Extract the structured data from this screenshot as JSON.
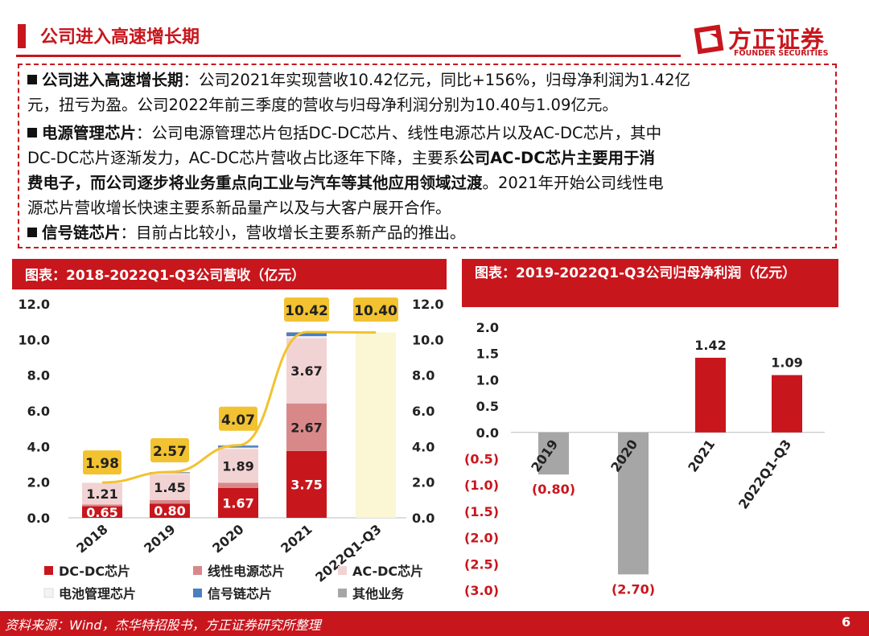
{
  "header": {
    "title": "公司进入高速增长期"
  },
  "logo": {
    "cn": "方正证券",
    "en": "FOUNDER SECURITIES"
  },
  "summary": [
    {
      "bold": "公司进入高速增长期",
      "lines": [
        "：公司2021年实现营收10.42亿元，同比+156%，归母净利润为1.42亿",
        "元，扭亏为盈。公司2022年前三季度的营收与归母净利润分别为10.40与1.09亿元。"
      ]
    },
    {
      "bold": "电源管理芯片",
      "text_line1": "：公司电源管理芯片包括DC-DC芯片、线性电源芯片以及AC-DC芯片，其中",
      "text_line2a": "DC-DC芯片逐渐发力，AC-DC芯片营收占比逐年下降，主要系",
      "text_line2b": "公司AC-DC芯片主要用于消",
      "text_line3a": "费电子，而公司逐步将业务重点向工业与汽车等其他应用领域过渡",
      "text_line3b": "。2021年开始公司线性电",
      "text_line4": "源芯片营收增长快速主要系新品量产以及与大客户展开合作。"
    },
    {
      "bold": "信号链芯片",
      "text": "：目前占比较小，营收增长主要系新产品的推出。"
    }
  ],
  "chart_data": [
    {
      "type": "bar",
      "title": "图表：2018-2022Q1-Q3公司营收（亿元）",
      "categories": [
        "2018",
        "2019",
        "2020",
        "2021",
        "2022Q1-Q3"
      ],
      "series": [
        {
          "name": "DC-DC芯片",
          "color": "#c8161d",
          "values": [
            0.65,
            0.8,
            1.67,
            3.75,
            null
          ],
          "labels": [
            "0.65",
            "0.80",
            "1.67",
            "3.75",
            ""
          ]
        },
        {
          "name": "线性电源芯片",
          "color": "#d9888a",
          "values": [
            0.1,
            0.2,
            0.3,
            2.67,
            null
          ],
          "labels": [
            "",
            "",
            "",
            "2.67",
            ""
          ]
        },
        {
          "name": "AC-DC芯片",
          "color": "#f2d3d4",
          "values": [
            1.21,
            1.45,
            1.89,
            3.67,
            null
          ],
          "labels": [
            "1.21",
            "1.45",
            "1.89",
            "3.67",
            ""
          ]
        },
        {
          "name": "电池管理芯片",
          "color": "#f3f3f3",
          "values": [
            0.02,
            0.05,
            0.08,
            0.1,
            null
          ],
          "labels": [
            "",
            "",
            "",
            "",
            ""
          ]
        },
        {
          "name": "信号链芯片",
          "color": "#4a7fc1",
          "values": [
            0.0,
            0.02,
            0.1,
            0.2,
            null
          ],
          "labels": [
            "",
            "",
            "",
            "",
            ""
          ]
        },
        {
          "name": "其他业务",
          "color": "#a6a6a6",
          "values": [
            0.0,
            0.05,
            0.03,
            0.03,
            null
          ],
          "labels": [
            "",
            "",
            "",
            "",
            ""
          ]
        }
      ],
      "totals": [
        1.98,
        2.57,
        4.07,
        10.42,
        10.4
      ],
      "total_labels": [
        "1.98",
        "2.57",
        "4.07",
        "10.42",
        "10.40"
      ],
      "total_bar_2022": 10.4,
      "total_bar_color": "#fbf6d3",
      "line_color": "#f2c230",
      "label_box_color": "#f2c230",
      "yticks": [
        "0.0",
        "2.0",
        "4.0",
        "6.0",
        "8.0",
        "10.0",
        "12.0"
      ],
      "ylim": [
        0,
        12
      ]
    },
    {
      "type": "bar",
      "title": "图表：2019-2022Q1-Q3公司归母净利润（亿元）",
      "categories": [
        "2019",
        "2020",
        "2021",
        "2022Q1-Q3"
      ],
      "values": [
        -0.8,
        -2.7,
        1.42,
        1.09
      ],
      "labels": [
        "(0.80)",
        "(2.70)",
        "1.42",
        "1.09"
      ],
      "colors": {
        "positive": "#c8161d",
        "negative": "#a6a6a6"
      },
      "yticks": [
        "2.0",
        "1.5",
        "1.0",
        "0.5",
        "0.0",
        "(0.5)",
        "(1.0)",
        "(1.5)",
        "(2.0)",
        "(2.5)",
        "(3.0)"
      ],
      "ylim": [
        -3.0,
        2.0
      ]
    }
  ],
  "footer": {
    "source": "资料来源：Wind，杰华特招股书，方正证券研究所整理",
    "page": "6"
  }
}
